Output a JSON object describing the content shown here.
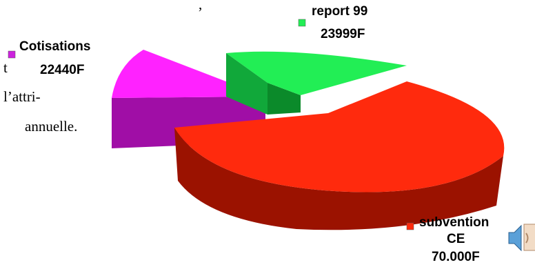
{
  "page": {
    "text_fragments": [
      ", ",
      "t",
      "l’attri-",
      "annuelle."
    ]
  },
  "chart_data": {
    "type": "pie",
    "style": "3d-exploded",
    "slices": [
      {
        "name": "subvention",
        "line2": "CE",
        "value_label": "70.000F",
        "value": 70000,
        "color": "#ff2a0d",
        "side_color": "#9b1200"
      },
      {
        "name": "Cotisations",
        "value_label": "22440F",
        "value": 22440,
        "color": "#ff22ff",
        "side_color": "#a00ea6"
      },
      {
        "name": "report 99",
        "value_label": "23999F",
        "value": 23999,
        "color": "#22ee55",
        "side_color": "#0b8a2a"
      }
    ],
    "legend": "labels beside slices",
    "icons": [
      "speaker-icon"
    ]
  }
}
